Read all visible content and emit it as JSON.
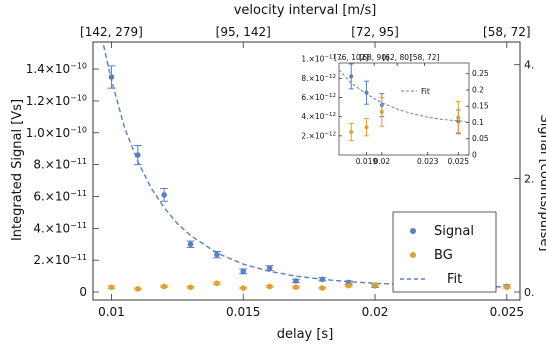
{
  "chart_data": [
    {
      "type": "scatter",
      "xlabel": "delay [s]",
      "ylabel": "Integrated Signal [Vs]",
      "top_axis_label": "velocity interval [m/s]",
      "right_axis_label": "Signal [counts/pulse]",
      "xlim": [
        0.0093,
        0.0255
      ],
      "ylim": [
        -5e-12,
        1.57e-10
      ],
      "x_ticks": [
        0.01,
        0.015,
        0.02,
        0.025
      ],
      "x_tick_labels": [
        "0.01",
        "0.015",
        "0.02",
        "0.025"
      ],
      "y_ticks": [
        0,
        2e-11,
        4e-11,
        6e-11,
        8e-11,
        1e-10,
        1.2e-10,
        1.4e-10
      ],
      "y_tick_labels": [
        {
          "mantissa": "0",
          "exp": ""
        },
        {
          "mantissa": "2.×10",
          "exp": "−11"
        },
        {
          "mantissa": "4.×10",
          "exp": "−11"
        },
        {
          "mantissa": "6.×10",
          "exp": "−11"
        },
        {
          "mantissa": "8.×10",
          "exp": "−11"
        },
        {
          "mantissa": "1.0×10",
          "exp": "−10"
        },
        {
          "mantissa": "1.2×10",
          "exp": "−10"
        },
        {
          "mantissa": "1.4×10",
          "exp": "−10"
        }
      ],
      "right_ticks": [
        0,
        2,
        4
      ],
      "right_tick_labels": [
        "0.",
        "2.",
        "4."
      ],
      "right_ylim": [
        -0.14,
        4.4
      ],
      "top_ticks": [
        0.01,
        0.015,
        0.02,
        0.025
      ],
      "top_tick_labels": [
        "[142, 279]",
        "[95, 142]",
        "[72, 95]",
        "[58, 72]"
      ],
      "series": [
        {
          "name": "Signal",
          "color": "#5b7fbf",
          "points": [
            {
              "x": 0.01,
              "y": 1.35e-10,
              "err": 7e-12
            },
            {
              "x": 0.011,
              "y": 8.6e-11,
              "err": 6e-12
            },
            {
              "x": 0.012,
              "y": 6.1e-11,
              "err": 4e-12
            },
            {
              "x": 0.013,
              "y": 3e-11,
              "err": 2e-12
            },
            {
              "x": 0.014,
              "y": 2.35e-11,
              "err": 2e-12
            },
            {
              "x": 0.015,
              "y": 1.3e-11,
              "err": 1.5e-12
            },
            {
              "x": 0.016,
              "y": 1.5e-11,
              "err": 1.5e-12
            },
            {
              "x": 0.017,
              "y": 7e-12,
              "err": 1e-12
            },
            {
              "x": 0.018,
              "y": 8e-12,
              "err": 1e-12
            },
            {
              "x": 0.019,
              "y": 6e-12,
              "err": 1e-12
            },
            {
              "x": 0.02,
              "y": 4e-12,
              "err": 1e-12
            },
            {
              "x": 0.025,
              "y": 3.5e-12,
              "err": 1e-12
            }
          ]
        },
        {
          "name": "BG",
          "color": "#e0a030",
          "points": [
            {
              "x": 0.01,
              "y": 3e-12,
              "err": 7e-13
            },
            {
              "x": 0.011,
              "y": 2e-12,
              "err": 5e-13
            },
            {
              "x": 0.012,
              "y": 3.5e-12,
              "err": 5e-13
            },
            {
              "x": 0.013,
              "y": 3e-12,
              "err": 5e-13
            },
            {
              "x": 0.014,
              "y": 5.5e-12,
              "err": 8e-13
            },
            {
              "x": 0.015,
              "y": 2.5e-12,
              "err": 5e-13
            },
            {
              "x": 0.016,
              "y": 3.5e-12,
              "err": 5e-13
            },
            {
              "x": 0.017,
              "y": 3e-12,
              "err": 5e-13
            },
            {
              "x": 0.018,
              "y": 2.5e-12,
              "err": 5e-13
            },
            {
              "x": 0.019,
              "y": 4e-12,
              "err": 5e-13
            },
            {
              "x": 0.02,
              "y": 4.5e-12,
              "err": 5e-13
            },
            {
              "x": 0.025,
              "y": 3e-12,
              "err": 5e-13
            }
          ]
        }
      ],
      "fit": {
        "name": "Fit",
        "color": "#5b7fbf",
        "style": "dashed",
        "points": [
          [
            0.0097,
            1.55e-10
          ],
          [
            0.01,
            1.33e-10
          ],
          [
            0.0105,
            1.03e-10
          ],
          [
            0.011,
            8.2e-11
          ],
          [
            0.0115,
            6.55e-11
          ],
          [
            0.012,
            5.3e-11
          ],
          [
            0.0125,
            4.3e-11
          ],
          [
            0.013,
            3.55e-11
          ],
          [
            0.014,
            2.45e-11
          ],
          [
            0.015,
            1.75e-11
          ],
          [
            0.016,
            1.3e-11
          ],
          [
            0.017,
            1e-11
          ],
          [
            0.018,
            8e-12
          ],
          [
            0.019,
            6.5e-12
          ],
          [
            0.02,
            5.5e-12
          ],
          [
            0.0215,
            4.5e-12
          ],
          [
            0.023,
            3.8e-12
          ],
          [
            0.025,
            3.2e-12
          ]
        ]
      },
      "legend": {
        "position": "lower-right",
        "entries": [
          "Signal",
          "BG",
          "Fit"
        ]
      }
    },
    {
      "type": "scatter",
      "role": "inset",
      "xlim": [
        0.0172,
        0.0257
      ],
      "ylim": [
        0,
        9.6e-12
      ],
      "x_ticks": [
        0.019,
        0.02,
        0.023,
        0.025
      ],
      "x_tick_labels": [
        "0.019",
        "0.02",
        "0.023",
        "0.025"
      ],
      "y_ticks": [
        2e-12,
        4e-12,
        6e-12,
        8e-12,
        1e-11
      ],
      "y_tick_labels": [
        {
          "mantissa": "2.×10",
          "exp": "−12"
        },
        {
          "mantissa": "4.×10",
          "exp": "−12"
        },
        {
          "mantissa": "6.×10",
          "exp": "−12"
        },
        {
          "mantissa": "8.×10",
          "exp": "−12"
        },
        {
          "mantissa": "1.×10",
          "exp": "−11"
        }
      ],
      "right_ticks": [
        0,
        0.05,
        0.1,
        0.15,
        0.2,
        0.25
      ],
      "right_tick_labels": [
        "0",
        "0.05",
        "0.1",
        "0.15",
        "0.2",
        "0.25"
      ],
      "right_ylim": [
        0,
        0.283
      ],
      "top_ticks": [
        0.018,
        0.0195,
        0.021,
        0.0228
      ],
      "top_tick_labels": [
        "[76, 102]",
        "[68, 90]",
        "[62, 80]",
        "[58, 72]"
      ],
      "series": [
        {
          "name": "Signal",
          "color": "#5b7fbf",
          "points": [
            {
              "x": 0.018,
              "y": 8.2e-12,
              "err": 1.3e-12
            },
            {
              "x": 0.019,
              "y": 6.5e-12,
              "err": 1.2e-12
            },
            {
              "x": 0.02,
              "y": 5.2e-12,
              "err": 1.2e-12
            },
            {
              "x": 0.025,
              "y": 3.5e-12,
              "err": 1.2e-12
            }
          ]
        },
        {
          "name": "BG",
          "color": "#e0a030",
          "points": [
            {
              "x": 0.018,
              "y": 2.4e-12,
              "err": 9e-13
            },
            {
              "x": 0.019,
              "y": 2.9e-12,
              "err": 9e-13
            },
            {
              "x": 0.02,
              "y": 4.5e-12,
              "err": 1.5e-12
            },
            {
              "x": 0.025,
              "y": 3.9e-12,
              "err": 1.7e-12
            }
          ]
        }
      ],
      "fit": {
        "name": "Fit",
        "color": "#5b7fbf",
        "style": "dashed",
        "points": [
          [
            0.0172,
            8.9e-12
          ],
          [
            0.018,
            7.5e-12
          ],
          [
            0.019,
            6.35e-12
          ],
          [
            0.02,
            5.45e-12
          ],
          [
            0.021,
            4.8e-12
          ],
          [
            0.022,
            4.3e-12
          ],
          [
            0.023,
            3.95e-12
          ],
          [
            0.024,
            3.7e-12
          ],
          [
            0.0255,
            3.5e-12
          ]
        ]
      },
      "legend": {
        "position": "top-right",
        "entries": [
          "Fit"
        ]
      }
    }
  ]
}
